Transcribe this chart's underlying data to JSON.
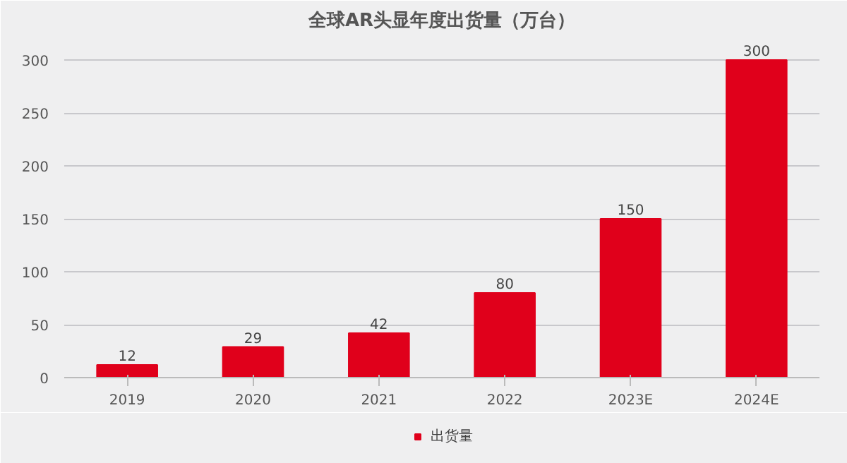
{
  "chart_data": {
    "type": "bar",
    "title": "全球AR头显年度出货量（万台）",
    "categories": [
      "2019",
      "2020",
      "2021",
      "2022",
      "2023E",
      "2024E"
    ],
    "series": [
      {
        "name": "出货量",
        "color": "#e0001b",
        "values": [
          12,
          29,
          42,
          80,
          150,
          300
        ]
      }
    ],
    "ylim": [
      0,
      320
    ],
    "yticks": [
      0,
      50,
      100,
      150,
      200,
      250,
      300
    ],
    "grid": "y",
    "legend": "bottom",
    "data_labels": true
  }
}
